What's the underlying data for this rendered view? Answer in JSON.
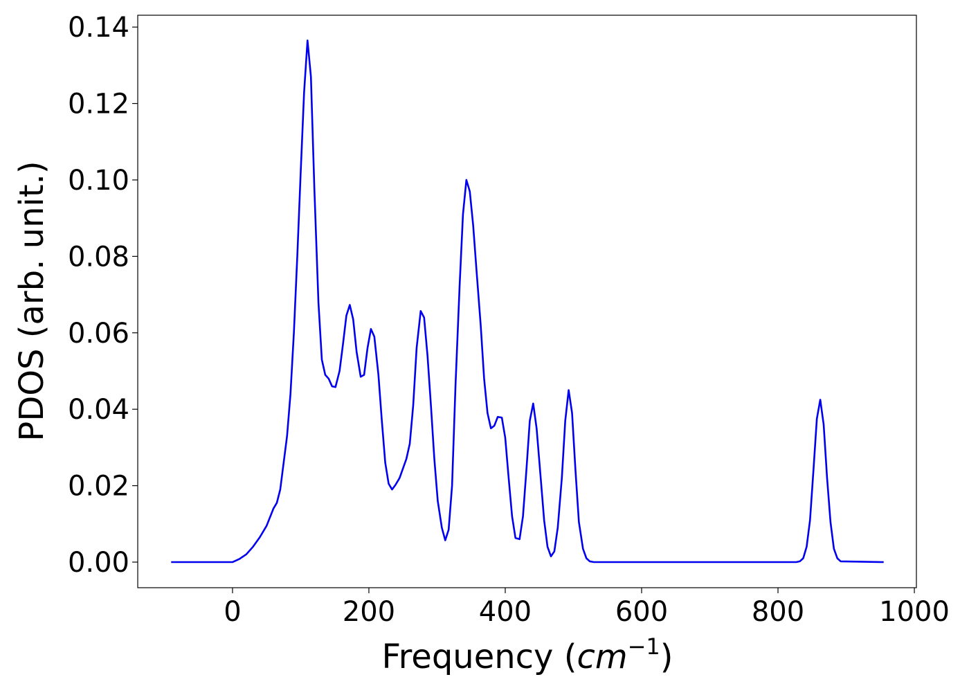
{
  "chart_data": {
    "type": "line",
    "xlabel": [
      "Frequency (",
      "cm",
      "−1",
      ")"
    ],
    "ylabel": "PDOS (arb. unit.)",
    "xlim": [
      -139,
      1003
    ],
    "ylim": [
      -0.0067,
      0.1431
    ],
    "xticks": [
      0,
      200,
      400,
      600,
      800,
      1000
    ],
    "yticks": [
      {
        "value": 0,
        "label": "0.00"
      },
      0.02,
      0.04,
      0.06,
      0.08,
      {
        "value": 0.1,
        "label": "0.10"
      },
      0.12,
      0.14
    ],
    "series": [
      {
        "color": "#0000ee",
        "x": [
          -90,
          0,
          10,
          20,
          30,
          40,
          50,
          60,
          65,
          70,
          75,
          80,
          85,
          90,
          95,
          100,
          105,
          110,
          115,
          120,
          126,
          131,
          136,
          141,
          146,
          151,
          157,
          162,
          167,
          172,
          177,
          182,
          188,
          193,
          198,
          203,
          208,
          214,
          219,
          224,
          229,
          234,
          239,
          245,
          255,
          260,
          265,
          270,
          276,
          281,
          286,
          291,
          296,
          301,
          307,
          312,
          317,
          322,
          327,
          333,
          338,
          343,
          348,
          353,
          358,
          364,
          369,
          374,
          379,
          384,
          389,
          395,
          400,
          405,
          410,
          415,
          421,
          426,
          431,
          436,
          441,
          446,
          452,
          457,
          462,
          467,
          472,
          477,
          483,
          488,
          493,
          498,
          503,
          508,
          514,
          519,
          524,
          530,
          827,
          832,
          837,
          842,
          847,
          852,
          857,
          862,
          867,
          872,
          877,
          882,
          887,
          892,
          955
        ],
        "values": [
          0,
          0,
          0.0008,
          0.002,
          0.004,
          0.0065,
          0.0095,
          0.014,
          0.0155,
          0.019,
          0.026,
          0.033,
          0.044,
          0.06,
          0.08,
          0.102,
          0.123,
          0.1365,
          0.127,
          0.098,
          0.068,
          0.053,
          0.049,
          0.048,
          0.046,
          0.0458,
          0.05,
          0.057,
          0.0645,
          0.0673,
          0.0635,
          0.055,
          0.0485,
          0.049,
          0.056,
          0.061,
          0.059,
          0.049,
          0.037,
          0.026,
          0.0205,
          0.019,
          0.0202,
          0.022,
          0.027,
          0.031,
          0.041,
          0.056,
          0.0657,
          0.064,
          0.054,
          0.041,
          0.027,
          0.016,
          0.009,
          0.0057,
          0.0085,
          0.02,
          0.046,
          0.072,
          0.091,
          0.1,
          0.097,
          0.088,
          0.076,
          0.062,
          0.048,
          0.039,
          0.035,
          0.0357,
          0.038,
          0.0378,
          0.0325,
          0.022,
          0.012,
          0.0063,
          0.006,
          0.012,
          0.024,
          0.037,
          0.0415,
          0.035,
          0.022,
          0.011,
          0.004,
          0.0015,
          0.0028,
          0.009,
          0.022,
          0.037,
          0.045,
          0.039,
          0.024,
          0.0105,
          0.0035,
          0.001,
          0.0002,
          0,
          0,
          0.0002,
          0.001,
          0.004,
          0.011,
          0.024,
          0.0375,
          0.0425,
          0.036,
          0.022,
          0.0105,
          0.0035,
          0.001,
          0.0002,
          0
        ]
      }
    ]
  }
}
